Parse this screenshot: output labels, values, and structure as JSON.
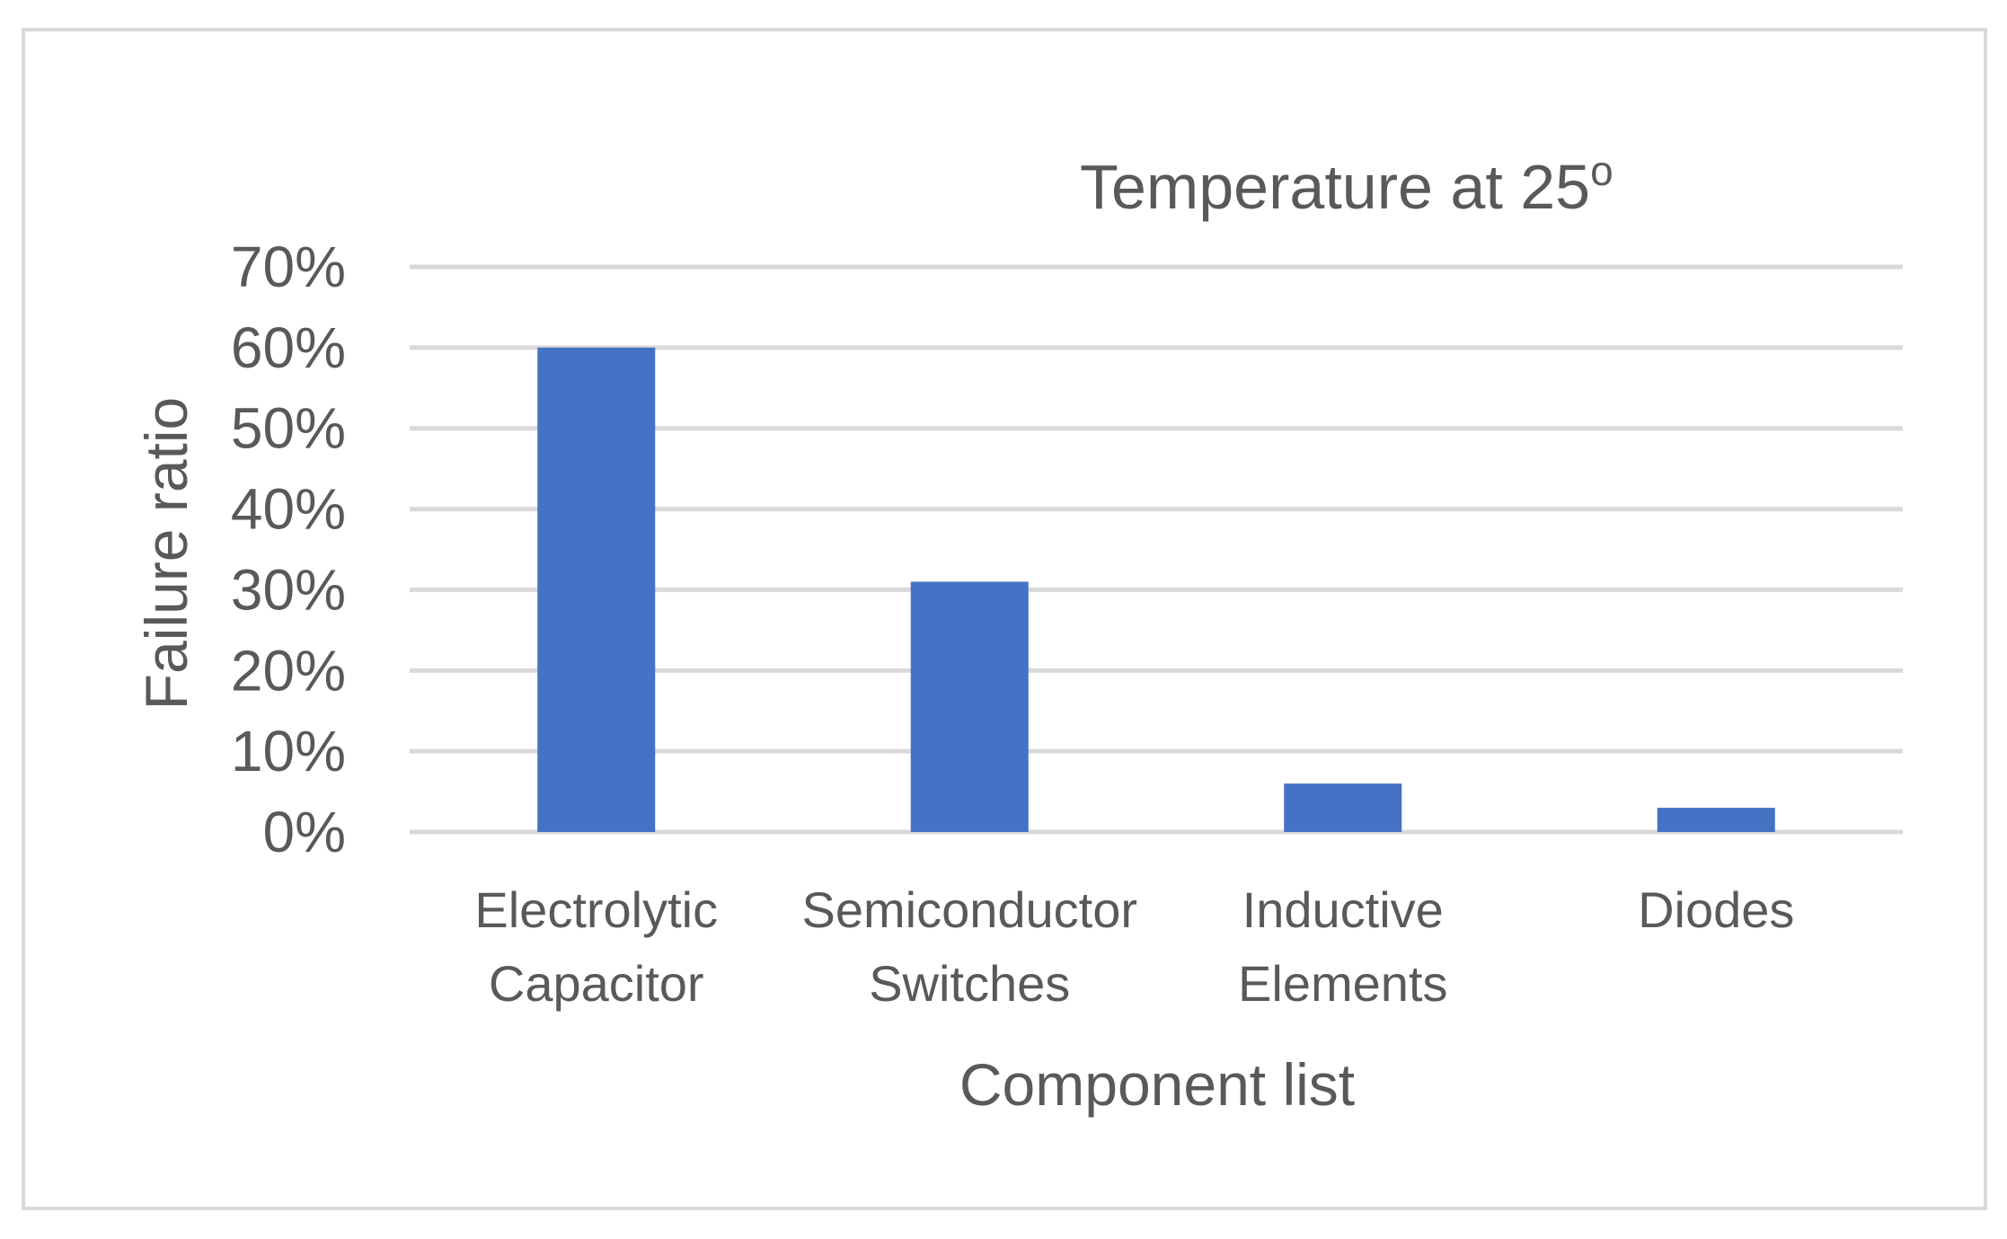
{
  "chart_data": {
    "type": "bar",
    "title": "Temperature at 25",
    "title_superscript": "o",
    "xlabel": "Component list",
    "ylabel": "Failure ratio",
    "categories": [
      [
        "Electrolytic",
        "Capacitor"
      ],
      [
        "Semiconductor",
        "Switches"
      ],
      [
        "Inductive",
        "Elements"
      ],
      [
        "Diodes"
      ]
    ],
    "values": [
      0.6,
      0.31,
      0.06,
      0.03
    ],
    "ylim": [
      0,
      0.7
    ],
    "yticks": [
      0,
      0.1,
      0.2,
      0.3,
      0.4,
      0.5,
      0.6,
      0.7
    ],
    "ytick_labels": [
      "0%",
      "10%",
      "20%",
      "30%",
      "40%",
      "50%",
      "60%",
      "70%"
    ],
    "grid": true,
    "legend": "none",
    "colors": {
      "bar": "#4472c4",
      "grid": "#d9d9d9",
      "text": "#595959",
      "frame": "#d9d9d9"
    }
  }
}
